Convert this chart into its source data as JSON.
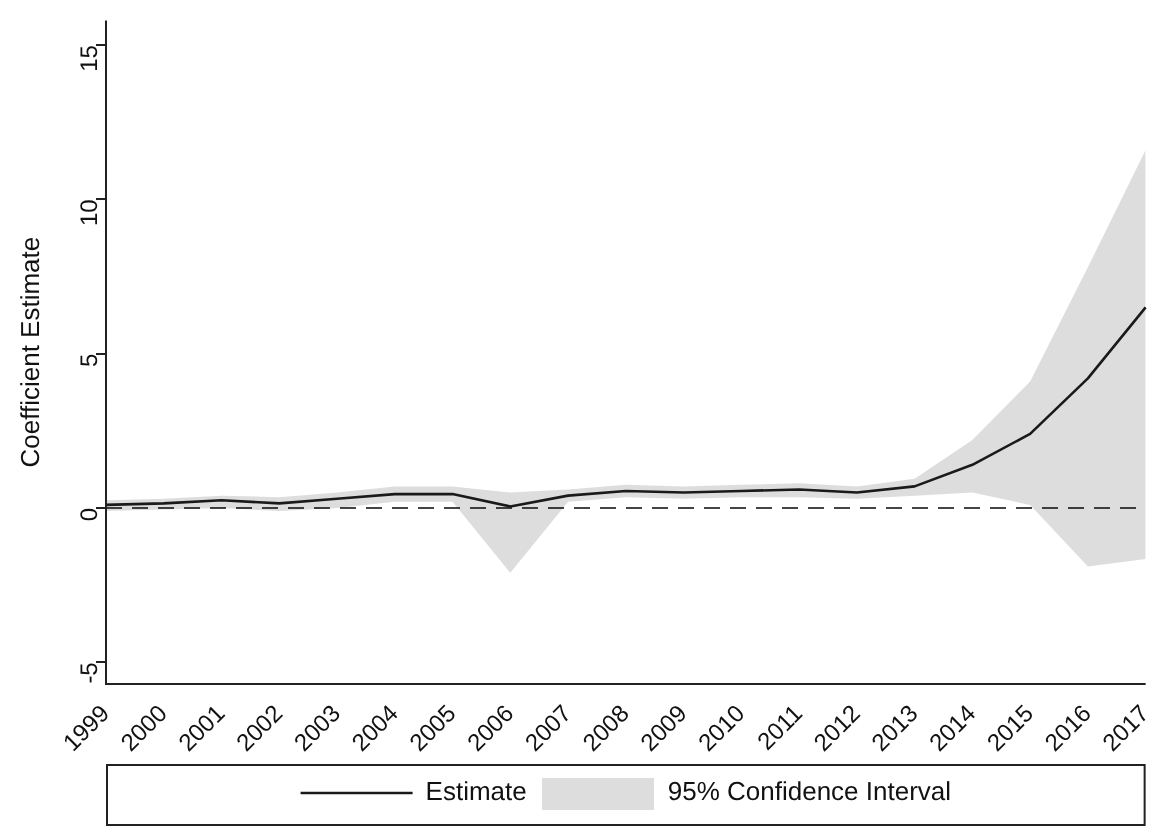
{
  "chart_data": {
    "type": "line",
    "ylabel": "Coefficient Estimate",
    "categories": [
      "1999",
      "2000",
      "2001",
      "2002",
      "2003",
      "2004",
      "2005",
      "2006",
      "2007",
      "2008",
      "2009",
      "2010",
      "2011",
      "2012",
      "2013",
      "2014",
      "2015",
      "2016",
      "2017"
    ],
    "series": [
      {
        "name": "Estimate",
        "color": "#1a1a1a",
        "values": [
          0.1,
          0.15,
          0.25,
          0.15,
          0.3,
          0.45,
          0.45,
          0.05,
          0.4,
          0.55,
          0.5,
          0.55,
          0.6,
          0.5,
          0.7,
          1.4,
          2.4,
          4.2,
          6.5
        ],
        "lower": [
          -0.1,
          -0.05,
          0.0,
          -0.1,
          0.0,
          0.2,
          0.2,
          -2.1,
          0.2,
          0.35,
          0.3,
          0.35,
          0.35,
          0.3,
          0.4,
          0.5,
          0.1,
          -1.9,
          -1.65
        ],
        "upper": [
          0.25,
          0.3,
          0.4,
          0.35,
          0.5,
          0.7,
          0.7,
          0.5,
          0.6,
          0.75,
          0.7,
          0.75,
          0.8,
          0.7,
          0.95,
          2.2,
          4.1,
          7.8,
          11.6
        ]
      }
    ],
    "annotations": [
      "95% Confidence Interval"
    ],
    "ylim": [
      -5.7,
      15.8
    ],
    "yticks": [
      -5,
      0,
      5,
      10,
      15
    ],
    "ref_lines": [
      {
        "axis": "y",
        "value": 0,
        "line_style": "dashed",
        "color": "#444444"
      }
    ],
    "grid": false,
    "legend": "bottom",
    "marker": "none",
    "line_style": "solid"
  }
}
